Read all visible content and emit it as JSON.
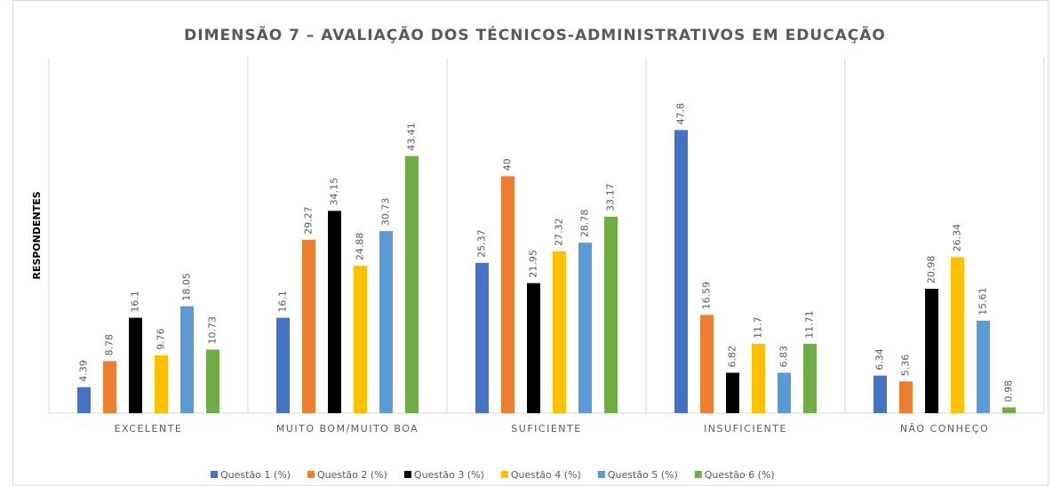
{
  "chart_data": {
    "type": "bar",
    "title": "DIMENSÃO 7 – AVALIAÇÃO DOS TÉCNICOS-ADMINISTRATIVOS  EM EDUCAÇÃO",
    "y_label": "RESPONDENTES",
    "categories": [
      "EXCELENTE",
      "MUITO BOM/MUITO  BOA",
      "SUFICIENTE",
      "INSUFICIENTE",
      "NÃO CONHEÇO"
    ],
    "series": [
      {
        "name": "Questão 1 (%)",
        "color": "#4472c4",
        "values": [
          4.39,
          16.1,
          25.37,
          47.8,
          6.34
        ]
      },
      {
        "name": "Questão 2 (%)",
        "color": "#ed7d31",
        "values": [
          8.78,
          29.27,
          40,
          16.59,
          5.36
        ]
      },
      {
        "name": "Questão 3 (%)",
        "color": "#000000",
        "values": [
          16.1,
          34.15,
          21.95,
          6.82,
          20.98
        ]
      },
      {
        "name": "Questão 4 (%)",
        "color": "#ffc000",
        "values": [
          9.76,
          24.88,
          27.32,
          11.7,
          26.34
        ]
      },
      {
        "name": "Questão 5 (%)",
        "color": "#5b9bd5",
        "values": [
          18.05,
          30.73,
          28.78,
          6.83,
          15.61
        ]
      },
      {
        "name": "Questão 6 (%)",
        "color": "#70ad47",
        "values": [
          10.73,
          43.41,
          33.17,
          11.71,
          0.98
        ]
      }
    ],
    "ylim": [
      0,
      60
    ],
    "legend": "bottom"
  }
}
